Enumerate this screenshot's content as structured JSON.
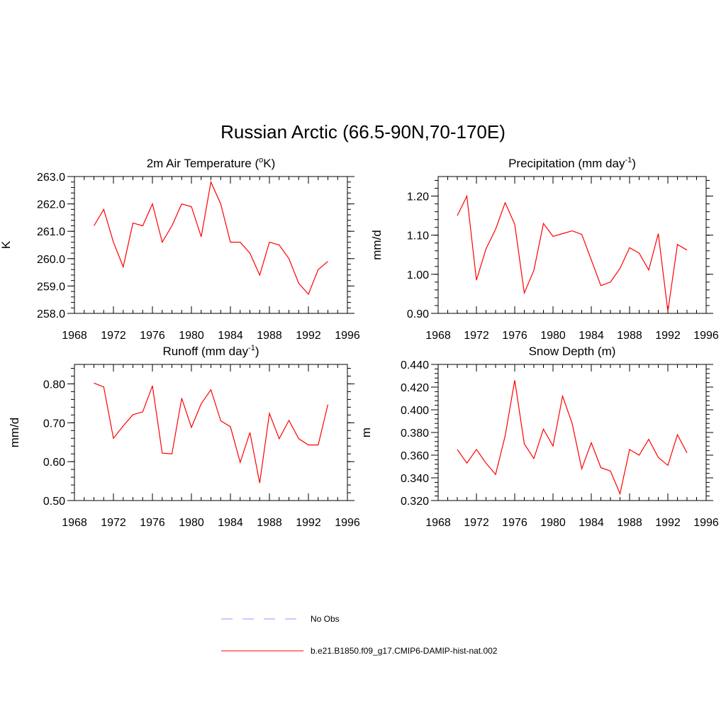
{
  "title": "Russian Arctic (66.5-90N,70-170E)",
  "legend": [
    {
      "label": "No Obs",
      "color": "#9999ff",
      "dash": true
    },
    {
      "label": "b.e21.B1850.f09_g17.CMIP6-DAMIP-hist-nat.002",
      "color": "#ff0000",
      "dash": false
    }
  ],
  "chart_data": [
    {
      "type": "line",
      "title_main": "2m Air Temperature (",
      "title_sup": "o",
      "title_end": "K)",
      "ylabel": "K",
      "xlim": [
        1968,
        1996
      ],
      "ylim": [
        258.0,
        263.0
      ],
      "xticks": [
        1968,
        1972,
        1976,
        1980,
        1984,
        1988,
        1992,
        1996
      ],
      "xtick_labels": [
        "1968",
        "1972",
        "1976",
        "1980",
        "1984",
        "1988",
        "1992",
        "1996"
      ],
      "yticks": [
        258.0,
        259.0,
        260.0,
        261.0,
        262.0,
        263.0
      ],
      "ytick_labels": [
        "258.0",
        "259.0",
        "260.0",
        "261.0",
        "262.0",
        "263.0"
      ],
      "y_minor_step": 0.2,
      "x": [
        1970,
        1971,
        1972,
        1973,
        1974,
        1975,
        1976,
        1977,
        1978,
        1979,
        1980,
        1981,
        1982,
        1983,
        1984,
        1985,
        1986,
        1987,
        1988,
        1989,
        1990,
        1991,
        1992,
        1993,
        1994
      ],
      "series": [
        {
          "name": "b.e21.B1850.f09_g17.CMIP6-DAMIP-hist-nat.002",
          "color": "#ff0000",
          "values": [
            261.2,
            261.8,
            260.6,
            259.7,
            261.3,
            261.2,
            262.0,
            260.6,
            261.2,
            262.0,
            261.9,
            260.8,
            262.8,
            262.0,
            260.6,
            260.6,
            260.2,
            259.4,
            260.6,
            260.5,
            260.0,
            259.1,
            258.7,
            259.6,
            259.9
          ]
        }
      ]
    },
    {
      "type": "line",
      "title_main": "Precipitation (mm day",
      "title_sup": "-1",
      "title_end": ")",
      "ylabel": "mm/d",
      "xlim": [
        1968,
        1996
      ],
      "ylim": [
        0.9,
        1.25
      ],
      "xticks": [
        1968,
        1972,
        1976,
        1980,
        1984,
        1988,
        1992,
        1996
      ],
      "xtick_labels": [
        "1968",
        "1972",
        "1976",
        "1980",
        "1984",
        "1988",
        "1992",
        "1996"
      ],
      "yticks": [
        0.9,
        1.0,
        1.1,
        1.2
      ],
      "ytick_labels": [
        "0.90",
        "1.00",
        "1.10",
        "1.20"
      ],
      "y_minor_step": 0.02,
      "x": [
        1970,
        1971,
        1972,
        1973,
        1974,
        1975,
        1976,
        1977,
        1978,
        1979,
        1980,
        1981,
        1982,
        1983,
        1984,
        1985,
        1986,
        1987,
        1988,
        1989,
        1990,
        1991,
        1992,
        1993,
        1994
      ],
      "series": [
        {
          "name": "b.e21.B1850.f09_g17.CMIP6-DAMIP-hist-nat.002",
          "color": "#ff0000",
          "values": [
            1.15,
            1.2,
            0.985,
            1.065,
            1.115,
            1.183,
            1.128,
            0.952,
            1.01,
            1.13,
            1.097,
            1.104,
            1.111,
            1.102,
            1.037,
            0.971,
            0.98,
            1.015,
            1.068,
            1.054,
            1.011,
            1.104,
            0.905,
            1.076,
            1.062
          ]
        }
      ]
    },
    {
      "type": "line",
      "title_main": "Runoff (mm day",
      "title_sup": "-1",
      "title_end": ")",
      "ylabel": "mm/d",
      "xlim": [
        1968,
        1996
      ],
      "ylim": [
        0.5,
        0.85
      ],
      "xticks": [
        1968,
        1972,
        1976,
        1980,
        1984,
        1988,
        1992,
        1996
      ],
      "xtick_labels": [
        "1968",
        "1972",
        "1976",
        "1980",
        "1984",
        "1988",
        "1992",
        "1996"
      ],
      "yticks": [
        0.5,
        0.6,
        0.7,
        0.8
      ],
      "ytick_labels": [
        "0.50",
        "0.60",
        "0.70",
        "0.80"
      ],
      "y_minor_step": 0.02,
      "x": [
        1970,
        1971,
        1972,
        1973,
        1974,
        1975,
        1976,
        1977,
        1978,
        1979,
        1980,
        1981,
        1982,
        1983,
        1984,
        1985,
        1986,
        1987,
        1988,
        1989,
        1990,
        1991,
        1992,
        1993,
        1994
      ],
      "series": [
        {
          "name": "b.e21.B1850.f09_g17.CMIP6-DAMIP-hist-nat.002",
          "color": "#ff0000",
          "values": [
            0.802,
            0.792,
            0.66,
            0.692,
            0.721,
            0.728,
            0.795,
            0.622,
            0.62,
            0.763,
            0.688,
            0.749,
            0.785,
            0.705,
            0.69,
            0.598,
            0.675,
            0.545,
            0.724,
            0.659,
            0.706,
            0.659,
            0.643,
            0.643,
            0.747
          ]
        }
      ]
    },
    {
      "type": "line",
      "title_main": "Snow Depth (m)",
      "title_sup": "",
      "title_end": "",
      "ylabel": "m",
      "xlim": [
        1968,
        1996
      ],
      "ylim": [
        0.32,
        0.44
      ],
      "xticks": [
        1968,
        1972,
        1976,
        1980,
        1984,
        1988,
        1992,
        1996
      ],
      "xtick_labels": [
        "1968",
        "1972",
        "1976",
        "1980",
        "1984",
        "1988",
        "1992",
        "1996"
      ],
      "yticks": [
        0.32,
        0.34,
        0.36,
        0.38,
        0.4,
        0.42,
        0.44
      ],
      "ytick_labels": [
        "0.320",
        "0.340",
        "0.360",
        "0.380",
        "0.400",
        "0.420",
        "0.440"
      ],
      "y_minor_step": 0.004,
      "x": [
        1970,
        1971,
        1972,
        1973,
        1974,
        1975,
        1976,
        1977,
        1978,
        1979,
        1980,
        1981,
        1982,
        1983,
        1984,
        1985,
        1986,
        1987,
        1988,
        1989,
        1990,
        1991,
        1992,
        1993,
        1994
      ],
      "series": [
        {
          "name": "b.e21.B1850.f09_g17.CMIP6-DAMIP-hist-nat.002",
          "color": "#ff0000",
          "values": [
            0.365,
            0.353,
            0.365,
            0.353,
            0.343,
            0.377,
            0.426,
            0.37,
            0.357,
            0.383,
            0.368,
            0.412,
            0.388,
            0.348,
            0.371,
            0.349,
            0.346,
            0.326,
            0.365,
            0.36,
            0.374,
            0.358,
            0.351,
            0.378,
            0.362
          ]
        }
      ]
    }
  ]
}
